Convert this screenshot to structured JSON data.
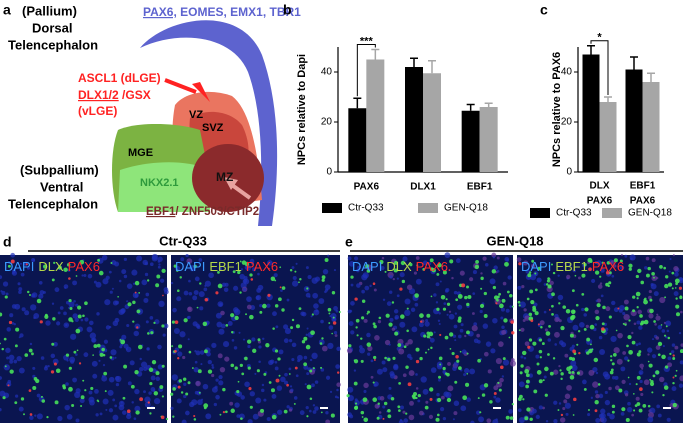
{
  "panel_a": {
    "letter": "a",
    "pallium": [
      "(Pallium)",
      "Dorsal",
      "Telencephalon"
    ],
    "pallium_markers": {
      "underlined": "PAX6,",
      "rest": "EOMES, EMX1, TBR1"
    },
    "lge": {
      "line1": "ASCL1 (dLGE)",
      "line2_underlined": "DLX1/2",
      "line2_rest": "/GSX",
      "line3": "(vLGE)"
    },
    "zones": {
      "vz": "VZ",
      "svz": "SVZ",
      "mge": "MGE",
      "mz": "MZ",
      "nkx": "NKX2.1"
    },
    "subpallium": [
      "(Subpallium)",
      "Ventral",
      "Telencephalon"
    ],
    "mz_markers": {
      "underlined": "EBF1",
      "rest": "/ ZNF503/CTIP2"
    }
  },
  "chart_data": [
    {
      "type": "bar",
      "letter": "b",
      "ylabel": "NPCs relative to Dapi",
      "categories": [
        [
          "PAX6"
        ],
        [
          "DLX1"
        ],
        [
          "EBF1"
        ]
      ],
      "series": [
        {
          "name": "Ctr-Q33",
          "color": "#000000",
          "values": [
            25.5,
            42,
            24.5
          ],
          "errors": [
            4,
            3.5,
            2.5
          ]
        },
        {
          "name": "GEN-Q18",
          "color": "#a6a6a6",
          "values": [
            45,
            39.5,
            26
          ],
          "errors": [
            4,
            5,
            1.5
          ]
        }
      ],
      "ylim": [
        0,
        50
      ],
      "yticks": [
        0,
        20,
        40
      ],
      "annotations": [
        {
          "text": "***",
          "category": 0
        }
      ]
    },
    {
      "type": "bar",
      "letter": "c",
      "ylabel": "NPCs relative to PAX6",
      "categories": [
        [
          "DLX",
          "PAX6"
        ],
        [
          "EBF1",
          "PAX6"
        ]
      ],
      "series": [
        {
          "name": "Ctr-Q33",
          "color": "#000000",
          "values": [
            47,
            41
          ],
          "errors": [
            3.5,
            5
          ]
        },
        {
          "name": "GEN-Q18",
          "color": "#a6a6a6",
          "values": [
            28,
            36
          ],
          "errors": [
            2,
            3.5
          ]
        }
      ],
      "ylim": [
        0,
        50
      ],
      "yticks": [
        0,
        20,
        40
      ],
      "annotations": [
        {
          "text": "*",
          "category": 0
        }
      ]
    }
  ],
  "panel_d": {
    "letter": "d",
    "title": "Ctr-Q33",
    "images": [
      [
        {
          "text": "DAPI",
          "color": "#3d9bff"
        },
        {
          "text": "DLX",
          "color": "#b5d84a"
        },
        {
          "text": "PAX6",
          "color": "#ff2a2a"
        }
      ],
      [
        {
          "text": "DAPI",
          "color": "#3d9bff"
        },
        {
          "text": "EBF1",
          "color": "#b5d84a"
        },
        {
          "text": "PAX6",
          "color": "#ff2a2a"
        }
      ]
    ]
  },
  "panel_e": {
    "letter": "e",
    "title": "GEN-Q18",
    "images": [
      [
        {
          "text": "DAPI",
          "color": "#3d9bff"
        },
        {
          "text": "DLX",
          "color": "#b5d84a"
        },
        {
          "text": "PAX6",
          "color": "#ff2a2a"
        }
      ],
      [
        {
          "text": "DAPI",
          "color": "#3d9bff"
        },
        {
          "text": "EBF1",
          "color": "#b5d84a"
        },
        {
          "text": "PAX6",
          "color": "#ff2a2a"
        }
      ]
    ]
  }
}
